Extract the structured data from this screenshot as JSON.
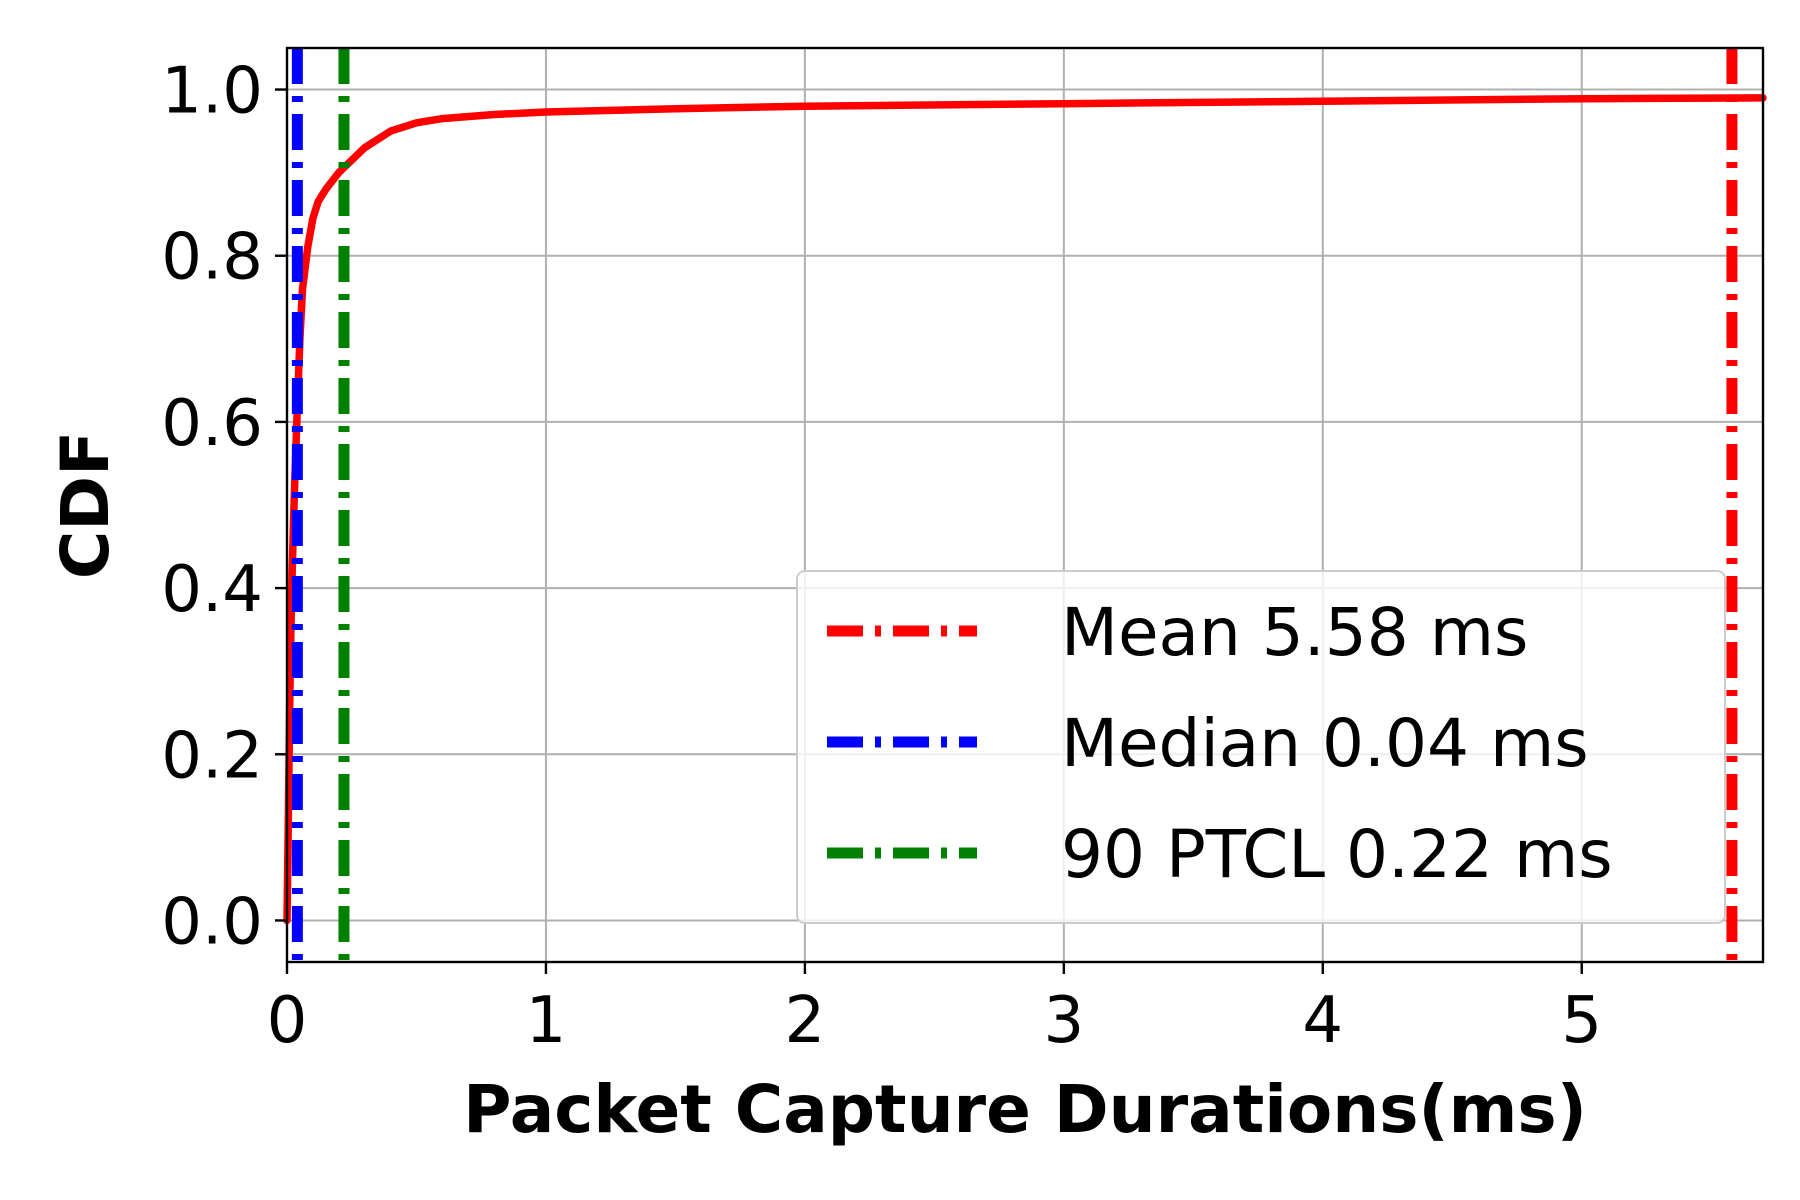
{
  "chart_data": {
    "type": "line",
    "title": "",
    "xlabel": "Packet Capture Durations(ms)",
    "ylabel": "CDF",
    "xlim": [
      0,
      5.7
    ],
    "ylim": [
      -0.05,
      1.05
    ],
    "xticks": [
      0,
      1,
      2,
      3,
      4,
      5
    ],
    "xtick_labels": [
      "0",
      "1",
      "2",
      "3",
      "4",
      "5"
    ],
    "yticks": [
      0.0,
      0.2,
      0.4,
      0.6,
      0.8,
      1.0
    ],
    "ytick_labels": [
      "0.0",
      "0.2",
      "0.4",
      "0.6",
      "0.8",
      "1.0"
    ],
    "grid": true,
    "legend_position": "lower-right",
    "series": [
      {
        "color": "#ff0000",
        "x": [
          0,
          0.005,
          0.01,
          0.015,
          0.02,
          0.025,
          0.03,
          0.04,
          0.05,
          0.06,
          0.08,
          0.1,
          0.12,
          0.15,
          0.2,
          0.3,
          0.4,
          0.5,
          0.6,
          0.8,
          1.0,
          1.5,
          2.0,
          3.0,
          4.0,
          5.0,
          5.7
        ],
        "y": [
          0.0,
          0.12,
          0.25,
          0.35,
          0.42,
          0.48,
          0.53,
          0.62,
          0.7,
          0.76,
          0.81,
          0.845,
          0.865,
          0.88,
          0.9,
          0.93,
          0.95,
          0.96,
          0.965,
          0.97,
          0.973,
          0.977,
          0.98,
          0.983,
          0.986,
          0.989,
          0.99
        ]
      }
    ],
    "vlines": [
      {
        "label": "Mean 5.58 ms",
        "x": 5.58,
        "color": "#ff0000"
      },
      {
        "label": "Median 0.04 ms",
        "x": 0.04,
        "color": "#0000ff"
      },
      {
        "label": "90 PTCL 0.22 ms",
        "x": 0.22,
        "color": "#008000"
      }
    ]
  }
}
